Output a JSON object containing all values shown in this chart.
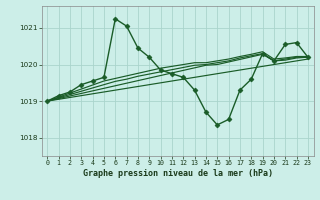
{
  "title": "Graphe pression niveau de la mer (hPa)",
  "bg_color": "#cceee8",
  "grid_color": "#aad4cc",
  "line_color": "#1a5c28",
  "marker": "D",
  "markersize": 2.5,
  "linewidth": 1.0,
  "xlim": [
    -0.5,
    23.5
  ],
  "ylim": [
    1017.5,
    1021.6
  ],
  "yticks": [
    1018,
    1019,
    1020,
    1021
  ],
  "xticks": [
    0,
    1,
    2,
    3,
    4,
    5,
    6,
    7,
    8,
    9,
    10,
    11,
    12,
    13,
    14,
    15,
    16,
    17,
    18,
    19,
    20,
    21,
    22,
    23
  ],
  "main_series": [
    1019.0,
    1019.15,
    1019.25,
    1019.45,
    1019.55,
    1019.65,
    1021.25,
    1021.05,
    1020.45,
    1020.2,
    1019.85,
    1019.75,
    1019.65,
    1019.3,
    1018.7,
    1018.35,
    1018.5,
    1019.3,
    1019.6,
    1020.3,
    1020.1,
    1020.55,
    1020.6,
    1020.2
  ],
  "trend_lines": [
    [
      1019.0,
      1019.05,
      1019.1,
      1019.15,
      1019.2,
      1019.25,
      1019.3,
      1019.35,
      1019.4,
      1019.45,
      1019.5,
      1019.55,
      1019.6,
      1019.65,
      1019.7,
      1019.75,
      1019.8,
      1019.85,
      1019.9,
      1019.95,
      1020.0,
      1020.05,
      1020.1,
      1020.15
    ],
    [
      1019.0,
      1019.07,
      1019.14,
      1019.21,
      1019.28,
      1019.35,
      1019.42,
      1019.49,
      1019.56,
      1019.63,
      1019.7,
      1019.77,
      1019.84,
      1019.91,
      1019.98,
      1020.0,
      1020.07,
      1020.14,
      1020.21,
      1020.28,
      1020.1,
      1020.12,
      1020.18,
      1020.2
    ],
    [
      1019.0,
      1019.09,
      1019.18,
      1019.27,
      1019.36,
      1019.45,
      1019.54,
      1019.6,
      1019.68,
      1019.74,
      1019.8,
      1019.86,
      1019.92,
      1019.98,
      1020.0,
      1020.05,
      1020.1,
      1020.18,
      1020.24,
      1020.3,
      1020.1,
      1020.15,
      1020.2,
      1020.2
    ],
    [
      1019.0,
      1019.11,
      1019.22,
      1019.33,
      1019.44,
      1019.55,
      1019.62,
      1019.69,
      1019.76,
      1019.83,
      1019.9,
      1019.95,
      1020.0,
      1020.05,
      1020.05,
      1020.1,
      1020.15,
      1020.22,
      1020.28,
      1020.35,
      1020.15,
      1020.18,
      1020.22,
      1020.22
    ]
  ]
}
